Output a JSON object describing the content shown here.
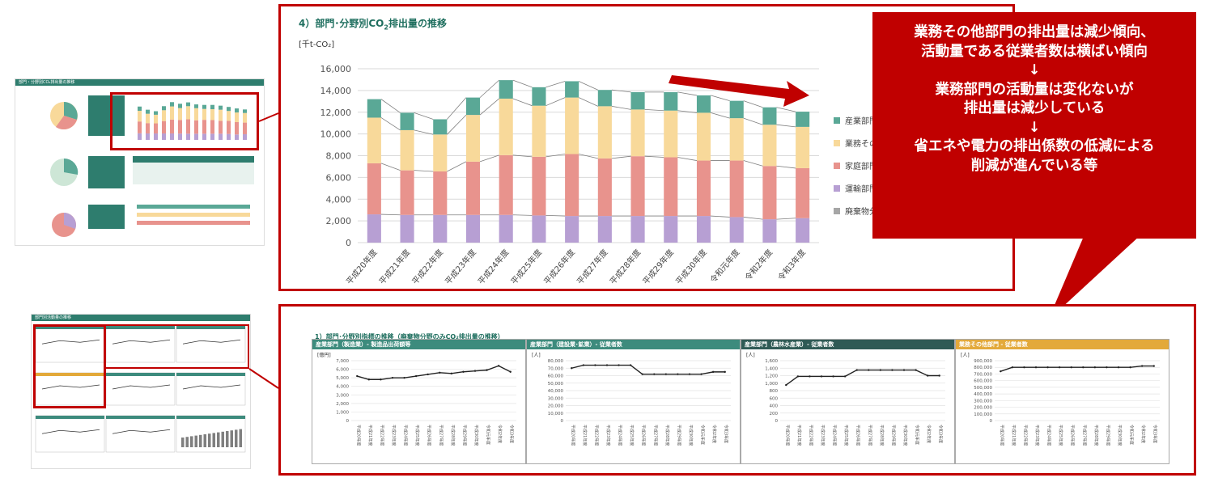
{
  "main_chart": {
    "title_pre": "4）部門･分野別CO",
    "title_sub": "2",
    "title_post": "排出量の推移",
    "unit": "[千t-CO₂]",
    "chart_data": {
      "type": "bar",
      "stacked": true,
      "categories": [
        "平成20年度",
        "平成21年度",
        "平成22年度",
        "平成23年度",
        "平成24年度",
        "平成25年度",
        "平成26年度",
        "平成27年度",
        "平成28年度",
        "平成29年度",
        "平成30年度",
        "令和元年度",
        "令和2年度",
        "令和3年度"
      ],
      "ylim": [
        0,
        16000
      ],
      "yticks": [
        "0",
        "2,000",
        "4,000",
        "6,000",
        "8,000",
        "10,000",
        "12,000",
        "14,000",
        "16,000"
      ],
      "series": [
        {
          "name": "廃棄物分野",
          "values": [
            150,
            150,
            150,
            150,
            150,
            150,
            150,
            150,
            150,
            150,
            150,
            150,
            150,
            150
          ]
        },
        {
          "name": "運輸部門",
          "values": [
            2450,
            2400,
            2400,
            2400,
            2400,
            2350,
            2300,
            2300,
            2300,
            2300,
            2300,
            2200,
            2000,
            2100
          ]
        },
        {
          "name": "家庭部門",
          "values": [
            4700,
            4100,
            4000,
            4900,
            5500,
            5400,
            5700,
            5300,
            5500,
            5400,
            5100,
            5200,
            4900,
            4600
          ]
        },
        {
          "name": "業務その他部門",
          "values": [
            4200,
            3700,
            3400,
            4300,
            5200,
            4700,
            5200,
            4800,
            4300,
            4300,
            4400,
            3900,
            3800,
            3800
          ]
        },
        {
          "name": "産業部門",
          "values": [
            1700,
            1600,
            1400,
            1600,
            1700,
            1700,
            1500,
            1500,
            1600,
            1700,
            1600,
            1600,
            1600,
            1400
          ]
        }
      ],
      "legend": [
        "産業部門",
        "業務その他部門",
        "家庭部門",
        "運輸部門",
        "廃棄物分野"
      ],
      "legend_labels": [
        "産業部門",
        "業務その他",
        "家庭部門",
        "運輸部門",
        "廃棄物分野"
      ],
      "legend_position": "right",
      "colors": [
        "#b79fd3",
        "#b79fd3",
        "#e8938d",
        "#f8d99a",
        "#5aa896"
      ],
      "grid": true
    }
  },
  "callout": {
    "lines": [
      "業務その他部門の排出量は減少傾向、",
      "活動量である従業者数は横ばい傾向",
      "↓",
      "業務部門の活動量は変化ないが",
      "排出量は減少している",
      "↓",
      "省エネや電力の排出係数の低減による",
      "削減が進んでいる等"
    ]
  },
  "thumb_top": {
    "title": "部門・分野別CO₂排出量の推移"
  },
  "thumb_bottom": {
    "title": "部門別活動量の推移"
  },
  "lower": {
    "title": "1）部門･分野別指標の推移（廃棄物分野のみCO₂排出量の推移）",
    "charts": [
      {
        "header": "産業部門（製造業）- 製造品出荷額等",
        "header_color": "#3d8b7d",
        "unit": "[億円]",
        "chart_data": {
          "type": "line",
          "categories": [
            "平成20年度",
            "平成21年度",
            "平成22年度",
            "平成23年度",
            "平成24年度",
            "平成25年度",
            "平成26年度",
            "平成27年度",
            "平成28年度",
            "平成29年度",
            "平成30年度",
            "令和元年度",
            "令和2年度",
            "令和3年度"
          ],
          "values": [
            5200,
            4800,
            4800,
            5000,
            5000,
            5200,
            5400,
            5600,
            5500,
            5700,
            5800,
            5900,
            6400,
            5700
          ],
          "ylim": [
            0,
            7000
          ],
          "yticks": [
            "0",
            "1,000",
            "2,000",
            "3,000",
            "4,000",
            "5,000",
            "6,000",
            "7,000"
          ]
        }
      },
      {
        "header": "産業部門（建設業･鉱業）- 従業者数",
        "header_color": "#3d8b7d",
        "unit": "[人]",
        "chart_data": {
          "type": "line",
          "categories": [
            "平成20年度",
            "平成21年度",
            "平成22年度",
            "平成23年度",
            "平成24年度",
            "平成25年度",
            "平成26年度",
            "平成27年度",
            "平成28年度",
            "平成29年度",
            "平成30年度",
            "令和元年度",
            "令和2年度",
            "令和3年度"
          ],
          "values": [
            70000,
            74000,
            74000,
            74000,
            74000,
            74000,
            62000,
            62000,
            62000,
            62000,
            62000,
            62000,
            65000,
            65000
          ],
          "ylim": [
            0,
            80000
          ],
          "yticks": [
            "0",
            "10,000",
            "20,000",
            "30,000",
            "40,000",
            "50,000",
            "60,000",
            "70,000",
            "80,000"
          ]
        }
      },
      {
        "header": "産業部門（農林水産業）- 従業者数",
        "header_color": "#2f5a55",
        "unit": "[人]",
        "chart_data": {
          "type": "line",
          "categories": [
            "平成20年度",
            "平成21年度",
            "平成22年度",
            "平成23年度",
            "平成24年度",
            "平成25年度",
            "平成26年度",
            "平成27年度",
            "平成28年度",
            "平成29年度",
            "平成30年度",
            "令和元年度",
            "令和2年度",
            "令和3年度"
          ],
          "values": [
            950,
            1180,
            1180,
            1180,
            1180,
            1180,
            1350,
            1350,
            1350,
            1350,
            1350,
            1350,
            1200,
            1200
          ],
          "ylim": [
            0,
            1600
          ],
          "yticks": [
            "0",
            "200",
            "400",
            "600",
            "800",
            "1,000",
            "1,200",
            "1,400",
            "1,600"
          ]
        }
      },
      {
        "header": "業務その他部門 - 従業者数",
        "header_color": "#e3a93a",
        "unit": "[人]",
        "chart_data": {
          "type": "line",
          "categories": [
            "平成20年度",
            "平成21年度",
            "平成22年度",
            "平成23年度",
            "平成24年度",
            "平成25年度",
            "平成26年度",
            "平成27年度",
            "平成28年度",
            "平成29年度",
            "平成30年度",
            "令和元年度",
            "令和2年度",
            "令和3年度"
          ],
          "values": [
            740000,
            800000,
            800000,
            800000,
            800000,
            800000,
            800000,
            800000,
            800000,
            800000,
            800000,
            800000,
            820000,
            820000
          ],
          "ylim": [
            0,
            900000
          ],
          "yticks": [
            "0",
            "100,000",
            "200,000",
            "300,000",
            "400,000",
            "500,000",
            "600,000",
            "700,000",
            "800,000",
            "900,000"
          ]
        }
      }
    ]
  }
}
